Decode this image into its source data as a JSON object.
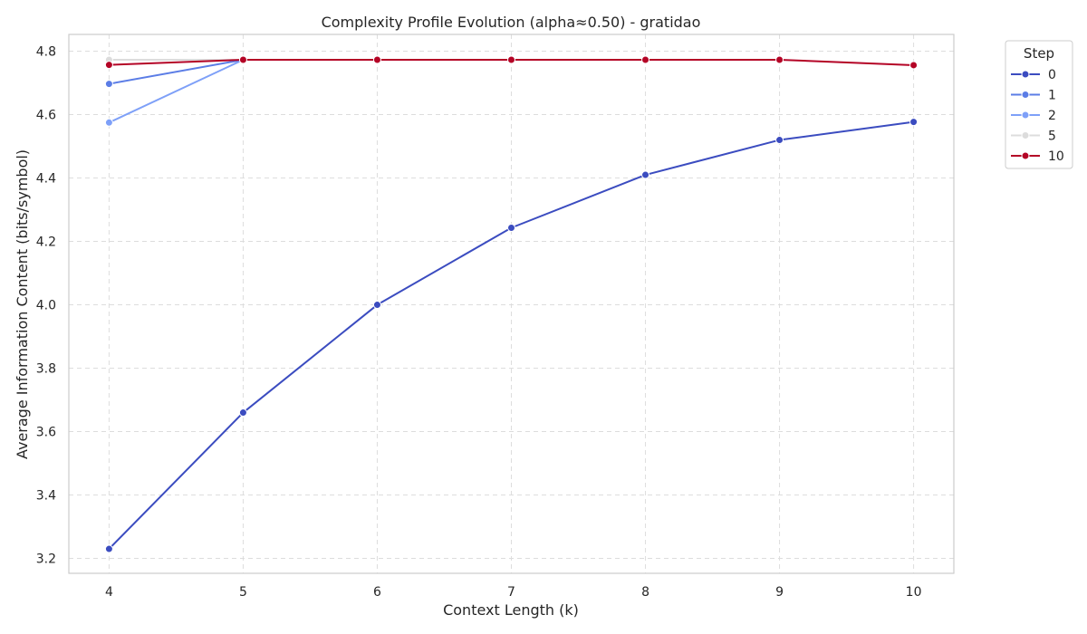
{
  "chart_data": {
    "type": "line",
    "title": "Complexity Profile Evolution (alpha≈0.50) - gratidao",
    "xlabel": "Context Length (k)",
    "ylabel": "Average Information Content (bits/symbol)",
    "x_ticks": [
      4,
      5,
      6,
      7,
      8,
      9,
      10
    ],
    "y_ticks": [
      "3.2",
      "3.4",
      "3.6",
      "3.8",
      "4.0",
      "4.2",
      "4.4",
      "4.6",
      "4.8"
    ],
    "xlim": [
      3.7,
      10.3
    ],
    "ylim": [
      3.153,
      4.853
    ],
    "grid": true,
    "legend_title": "Step",
    "legend_position": "outside-top-right",
    "series": [
      {
        "name": "0",
        "color": "#3b4cc0",
        "x": [
          4,
          5,
          6,
          7,
          8,
          9,
          10
        ],
        "y": [
          3.23,
          3.66,
          4.0,
          4.243,
          4.41,
          4.52,
          4.577
        ]
      },
      {
        "name": "1",
        "color": "#5b7de6",
        "x": [
          4,
          5
        ],
        "y": [
          4.697,
          4.773
        ]
      },
      {
        "name": "2",
        "color": "#7ea0f8",
        "x": [
          4,
          5
        ],
        "y": [
          4.575,
          4.773
        ]
      },
      {
        "name": "5",
        "color": "#dcdcdc",
        "x": [
          4,
          5
        ],
        "y": [
          4.773,
          4.773
        ]
      },
      {
        "name": "10",
        "color": "#b40426",
        "x": [
          4,
          5,
          6,
          7,
          8,
          9,
          10
        ],
        "y": [
          4.757,
          4.773,
          4.773,
          4.773,
          4.773,
          4.773,
          4.756
        ]
      }
    ]
  }
}
